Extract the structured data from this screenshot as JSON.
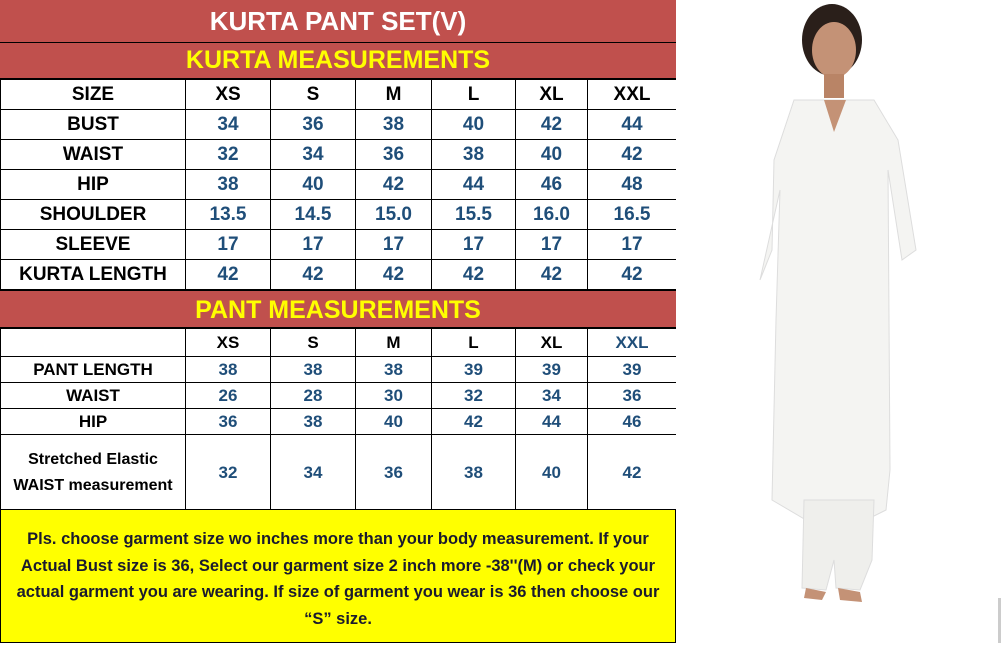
{
  "title": "KURTA PANT SET(V)",
  "kurta": {
    "heading": "KURTA MEASUREMENTS",
    "size_label": "SIZE",
    "sizes": [
      "XS",
      "S",
      "M",
      "L",
      "XL",
      "XXL"
    ],
    "rows": [
      {
        "label": "BUST",
        "values": [
          "34",
          "36",
          "38",
          "40",
          "42",
          "44"
        ]
      },
      {
        "label": "WAIST",
        "values": [
          "32",
          "34",
          "36",
          "38",
          "40",
          "42"
        ]
      },
      {
        "label": "HIP",
        "values": [
          "38",
          "40",
          "42",
          "44",
          "46",
          "48"
        ]
      },
      {
        "label": "SHOULDER",
        "values": [
          "13.5",
          "14.5",
          "15.0",
          "15.5",
          "16.0",
          "16.5"
        ]
      },
      {
        "label": "SLEEVE",
        "values": [
          "17",
          "17",
          "17",
          "17",
          "17",
          "17"
        ]
      },
      {
        "label": "KURTA LENGTH",
        "values": [
          "42",
          "42",
          "42",
          "42",
          "42",
          "42"
        ]
      }
    ]
  },
  "pant": {
    "heading": "PANT MEASUREMENTS",
    "sizes": [
      "XS",
      "S",
      "M",
      "L",
      "XL",
      "XXL"
    ],
    "rows": [
      {
        "label": "PANT LENGTH",
        "values": [
          "38",
          "38",
          "38",
          "39",
          "39",
          "39"
        ]
      },
      {
        "label": "WAIST",
        "values": [
          "26",
          "28",
          "30",
          "32",
          "34",
          "36"
        ]
      },
      {
        "label": "HIP",
        "values": [
          "36",
          "38",
          "40",
          "42",
          "44",
          "46"
        ]
      },
      {
        "label": "Stretched Elastic WAIST measurement",
        "values": [
          "32",
          "34",
          "36",
          "38",
          "40",
          "42"
        ]
      }
    ]
  },
  "note": "Pls. choose garment size wo inches more than your body measurement. If your Actual Bust size is 36, Select our garment size 2 inch more -38''(M) or check your actual garment you are wearing. If size of garment you wear is 36 then choose our “S” size.",
  "colors": {
    "header_band": "#c0504d",
    "heading_text": "#ffff00",
    "value_text": "#1f4e79",
    "note_bg": "#ffff00"
  },
  "photo": {
    "subject": "model-white-kurta-pant-set"
  }
}
